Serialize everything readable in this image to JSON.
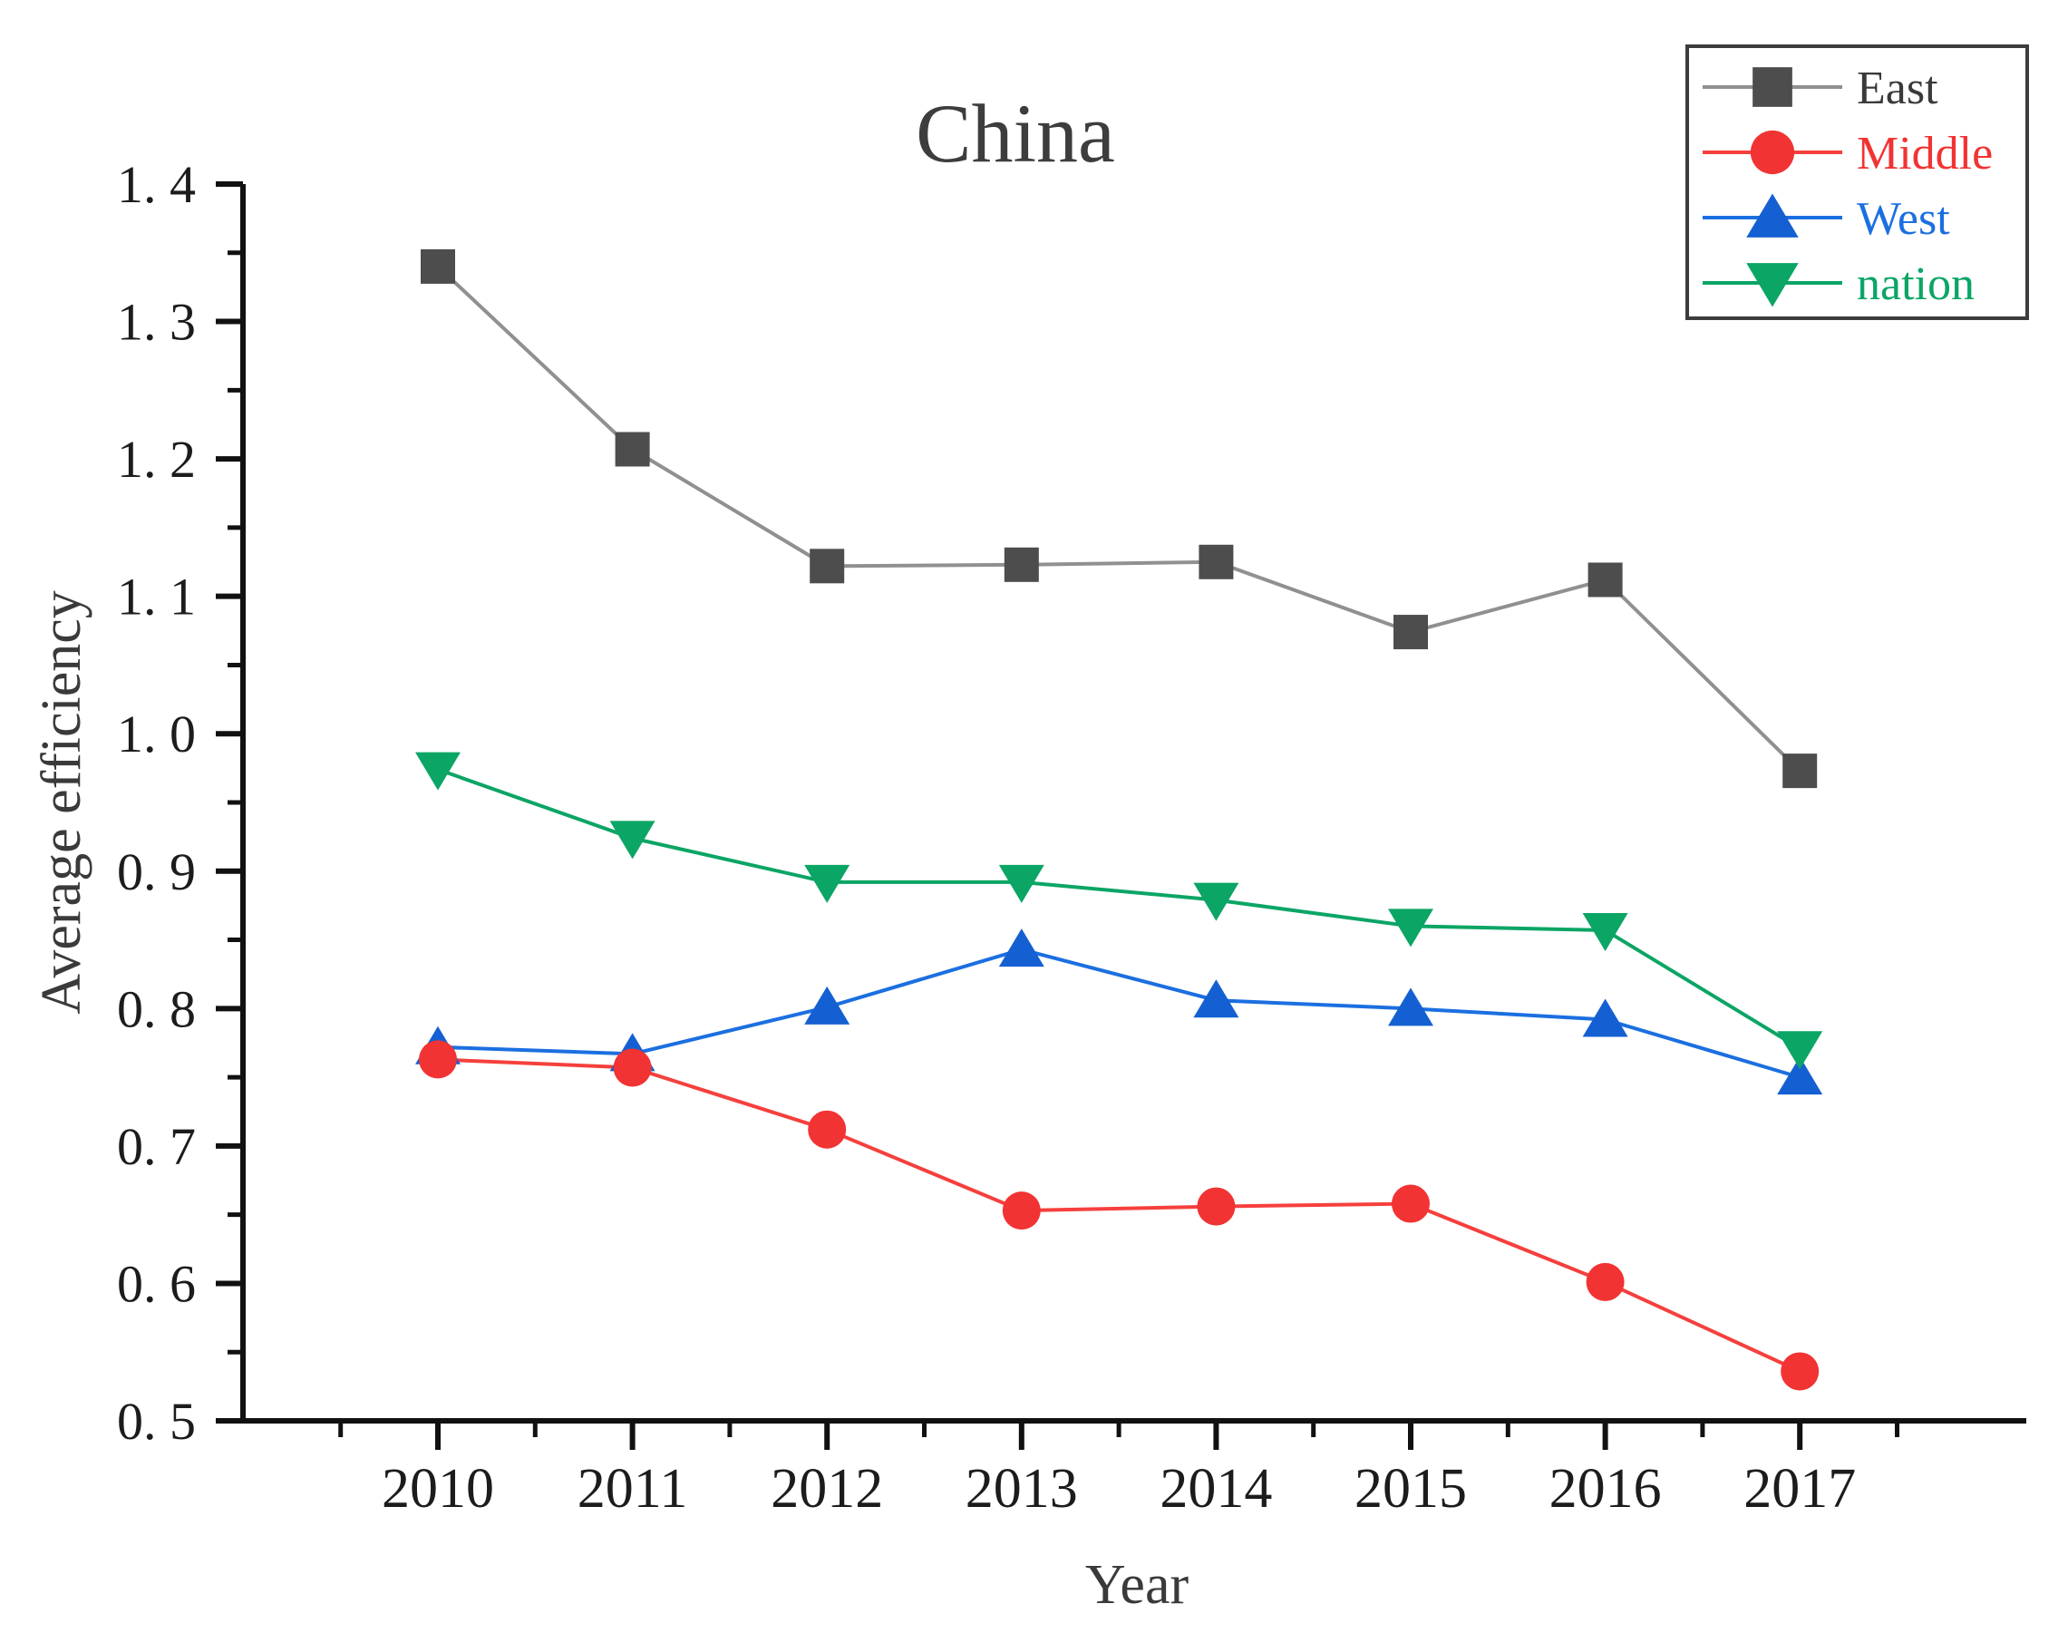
{
  "chart_data": {
    "type": "line",
    "title": "China",
    "xlabel": "Year",
    "ylabel": "Average efficiency",
    "x": [
      2010,
      2011,
      2012,
      2013,
      2014,
      2015,
      2016,
      2017
    ],
    "x_tick_labels": [
      "2010",
      "2011",
      "2012",
      "2013",
      "2014",
      "2015",
      "2016",
      "2017"
    ],
    "y_tick_labels": [
      "0. 5",
      "0. 6",
      "0. 7",
      "0. 8",
      "0. 9",
      "1. 0",
      "1. 1",
      "1. 2",
      "1. 3",
      "1. 4"
    ],
    "y_tick_values": [
      0.5,
      0.6,
      0.7,
      0.8,
      0.9,
      1.0,
      1.1,
      1.2,
      1.3,
      1.4
    ],
    "ylim": [
      0.5,
      1.4
    ],
    "y_major_step": 0.1,
    "y_minor_step": 0.05,
    "grid": false,
    "legend_position": "top-right",
    "series": [
      {
        "name": "East",
        "marker": "square",
        "marker_color": "#4d4d4d",
        "line_color": "#909090",
        "label_color": "#3a3a3a",
        "values": [
          1.34,
          1.207,
          1.122,
          1.123,
          1.125,
          1.074,
          1.112,
          0.973
        ]
      },
      {
        "name": "Middle",
        "marker": "circle",
        "marker_color": "#f23333",
        "line_color": "#f5403d",
        "label_color": "#f23333",
        "values": [
          0.763,
          0.757,
          0.712,
          0.653,
          0.656,
          0.658,
          0.601,
          0.536
        ]
      },
      {
        "name": "West",
        "marker": "triangle-up",
        "marker_color": "#1460d2",
        "line_color": "#1b6fe0",
        "label_color": "#1b6fe0",
        "values": [
          0.772,
          0.767,
          0.801,
          0.843,
          0.806,
          0.8,
          0.792,
          0.75
        ]
      },
      {
        "name": "nation",
        "marker": "triangle-down",
        "marker_color": "#0ba565",
        "line_color": "#0ba565",
        "label_color": "#0ba565",
        "values": [
          0.974,
          0.924,
          0.892,
          0.892,
          0.879,
          0.86,
          0.857,
          0.771
        ]
      }
    ]
  }
}
